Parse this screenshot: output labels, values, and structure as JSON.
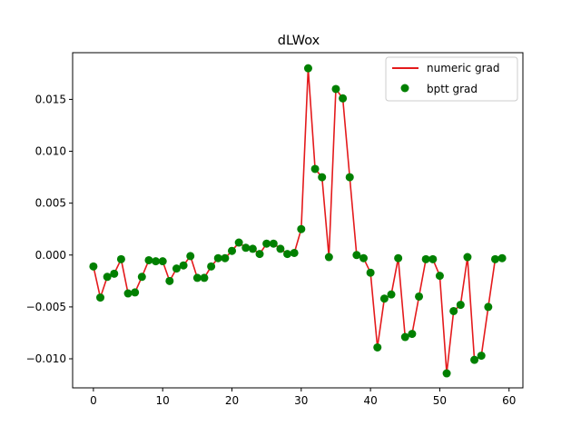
{
  "chart_data": {
    "type": "line",
    "title": "dLWox",
    "xlabel": "",
    "ylabel": "",
    "xlim": [
      -3,
      62
    ],
    "ylim": [
      -0.0128,
      0.0195
    ],
    "xticks": [
      0,
      10,
      20,
      30,
      40,
      50,
      60
    ],
    "yticks": [
      -0.01,
      -0.005,
      0.0,
      0.005,
      0.01,
      0.015
    ],
    "ytick_labels": [
      "−0.010",
      "−0.005",
      "0.000",
      "0.005",
      "0.010",
      "0.015"
    ],
    "xtick_labels": [
      "0",
      "10",
      "20",
      "30",
      "40",
      "50",
      "60"
    ],
    "grid": false,
    "legend_position": "top-right",
    "x": [
      0,
      1,
      2,
      3,
      4,
      5,
      6,
      7,
      8,
      9,
      10,
      11,
      12,
      13,
      14,
      15,
      16,
      17,
      18,
      19,
      20,
      21,
      22,
      23,
      24,
      25,
      26,
      27,
      28,
      29,
      30,
      31,
      32,
      33,
      34,
      35,
      36,
      37,
      38,
      39,
      40,
      41,
      42,
      43,
      44,
      45,
      46,
      47,
      48,
      49,
      50,
      51,
      52,
      53,
      54,
      55,
      56,
      57,
      58,
      59
    ],
    "series": [
      {
        "name": "numeric grad",
        "style": "line",
        "color": "#e41a1c",
        "values": [
          -0.0011,
          -0.0041,
          -0.0021,
          -0.0018,
          -0.0004,
          -0.0037,
          -0.0036,
          -0.0021,
          -0.0005,
          -0.0006,
          -0.0006,
          -0.0025,
          -0.0013,
          -0.001,
          -0.0001,
          -0.0022,
          -0.0022,
          -0.0011,
          -0.0003,
          -0.0003,
          0.0004,
          0.0012,
          0.0007,
          0.0006,
          0.0001,
          0.0011,
          0.0011,
          0.0006,
          0.0001,
          0.0002,
          0.0025,
          0.018,
          0.0083,
          0.0075,
          -0.0002,
          0.016,
          0.0151,
          0.0075,
          0.0,
          -0.0003,
          -0.0017,
          -0.0089,
          -0.0042,
          -0.0038,
          -0.0003,
          -0.0079,
          -0.0076,
          -0.004,
          -0.0004,
          -0.0004,
          -0.002,
          -0.0114,
          -0.0054,
          -0.0048,
          -0.0002,
          -0.0101,
          -0.0097,
          -0.005,
          -0.0004,
          -0.0003
        ]
      },
      {
        "name": "bptt grad",
        "style": "points",
        "color": "#008000",
        "values": [
          -0.0011,
          -0.0041,
          -0.0021,
          -0.0018,
          -0.0004,
          -0.0037,
          -0.0036,
          -0.0021,
          -0.0005,
          -0.0006,
          -0.0006,
          -0.0025,
          -0.0013,
          -0.001,
          -0.0001,
          -0.0022,
          -0.0022,
          -0.0011,
          -0.0003,
          -0.0003,
          0.0004,
          0.0012,
          0.0007,
          0.0006,
          0.0001,
          0.0011,
          0.0011,
          0.0006,
          0.0001,
          0.0002,
          0.0025,
          0.018,
          0.0083,
          0.0075,
          -0.0002,
          0.016,
          0.0151,
          0.0075,
          0.0,
          -0.0003,
          -0.0017,
          -0.0089,
          -0.0042,
          -0.0038,
          -0.0003,
          -0.0079,
          -0.0076,
          -0.004,
          -0.0004,
          -0.0004,
          -0.002,
          -0.0114,
          -0.0054,
          -0.0048,
          -0.0002,
          -0.0101,
          -0.0097,
          -0.005,
          -0.0004,
          -0.0003
        ]
      }
    ]
  }
}
